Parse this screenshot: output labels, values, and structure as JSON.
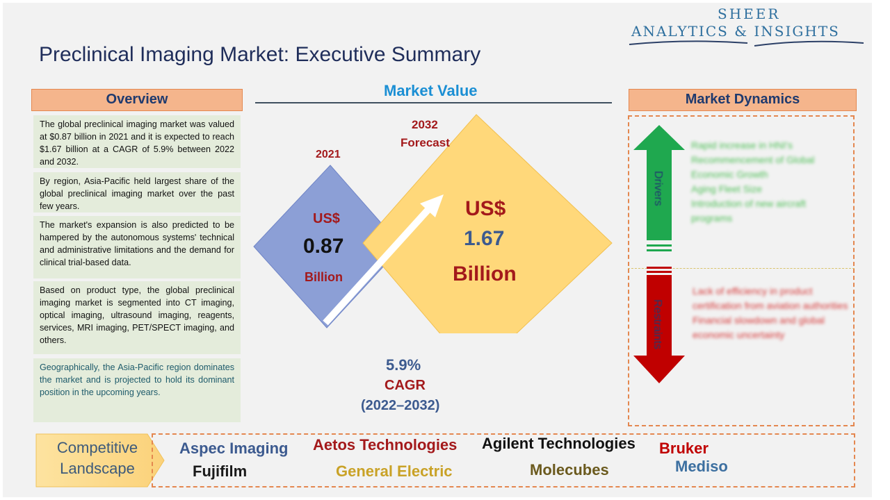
{
  "logo": {
    "line1": "SHEER",
    "line2": "ANALYTICS & INSIGHTS"
  },
  "title": "Preclinical Imaging Market: Executive Summary",
  "overview": {
    "heading": "Overview",
    "paragraphs": [
      "The global preclinical imaging market was valued at $0.87 billion in 2021 and it is expected to reach $1.67 billion at a CAGR of 5.9% between 2022 and 2032.",
      "By region, Asia-Pacific held largest share of the global preclinical imaging market over the past few years.",
      "The market's expansion is also predicted to be hampered by the autonomous systems' technical and administrative limitations and the demand for clinical trial-based data.",
      "Based on product type, the global preclinical imaging market is segmented into CT imaging, optical imaging, ultrasound imaging, reagents, services, MRI imaging, PET/SPECT imaging, and others.",
      "Geographically, the Asia-Pacific region dominates the market and is projected to hold its dominant position in the upcoming years."
    ]
  },
  "market_value": {
    "heading": "Market Value",
    "y2021": {
      "year": "2021",
      "currency": "US$",
      "amount": "0.87",
      "unit": "Billion"
    },
    "y2032": {
      "year": "2032",
      "label": "Forecast",
      "currency": "US$",
      "amount": "1.67",
      "unit": "Billion"
    },
    "cagr": {
      "rate": "5.9%",
      "label": "CAGR",
      "period": "(2022–2032)"
    }
  },
  "dynamics": {
    "heading": "Market Dynamics",
    "drivers_label": "Drivers",
    "drivers": [
      "Rapid increase in HNI's",
      "Recommencement of Global Economic Growth",
      "Aging Fleet Size",
      "Introduction of new aircraft programs"
    ],
    "restraints_label": "Restraints",
    "restraints": [
      "Lack of efficiency in product certification from aviation authorities",
      "Financial slowdown and global economic uncertainty"
    ]
  },
  "competitive": {
    "label_line1": "Competitive",
    "label_line2": "Landscape",
    "companies": [
      "Aspec Imaging",
      "Fujifilm",
      "Aetos Technologies",
      "General Electric",
      "Agilent Technologies",
      "Molecubes",
      "Bruker",
      "Mediso"
    ]
  },
  "colors": {
    "title": "#1f2d5a",
    "heading_bg": "#f5b58c",
    "accent_blue": "#1b8fd4",
    "diamond_2021": "#8c9fd6",
    "diamond_2032": "#ffd87a",
    "value_red": "#a3191b",
    "drivers_arrow": "#1fa84f",
    "restraints_arrow": "#c00000"
  }
}
